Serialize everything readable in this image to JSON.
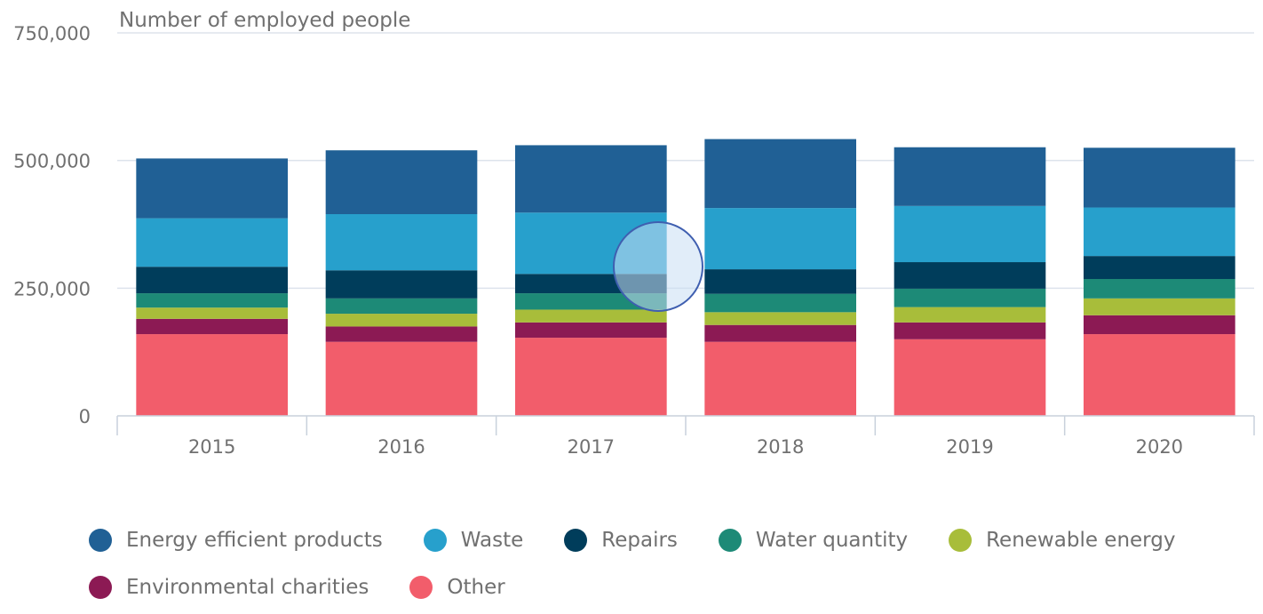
{
  "chart_data": {
    "type": "bar",
    "stacked": true,
    "title": "Number of employed people",
    "categories": [
      "2015",
      "2016",
      "2017",
      "2018",
      "2019",
      "2020"
    ],
    "ylim": [
      0,
      750000
    ],
    "yticks": [
      0,
      250000,
      500000,
      750000
    ],
    "ytick_labels": [
      "0",
      "250,000",
      "500,000",
      "750,000"
    ],
    "grid": true,
    "legend_position": "bottom",
    "series": [
      {
        "name": "Other",
        "color": "#f25d6b",
        "values": [
          160000,
          145000,
          153000,
          145000,
          150000,
          160000
        ]
      },
      {
        "name": "Environmental charities",
        "color": "#8c1a54",
        "values": [
          30000,
          30000,
          30000,
          33000,
          33000,
          37000
        ]
      },
      {
        "name": "Renewable energy",
        "color": "#a8bd3a",
        "values": [
          22000,
          25000,
          25000,
          25000,
          30000,
          33000
        ]
      },
      {
        "name": "Water quantity",
        "color": "#1d8a77",
        "values": [
          28000,
          30000,
          32000,
          36000,
          36000,
          38000
        ]
      },
      {
        "name": "Repairs",
        "color": "#003d5b",
        "values": [
          52000,
          55000,
          38000,
          48000,
          52000,
          45000
        ]
      },
      {
        "name": "Waste",
        "color": "#27a0cc",
        "values": [
          95000,
          110000,
          120000,
          120000,
          110000,
          95000
        ]
      },
      {
        "name": "Energy efficient products",
        "color": "#206095",
        "values": [
          117000,
          125000,
          132000,
          135000,
          115000,
          117000
        ]
      }
    ]
  },
  "legend": {
    "rows": [
      [
        {
          "label": "Energy efficient products",
          "color": "#206095"
        },
        {
          "label": "Waste",
          "color": "#27a0cc"
        },
        {
          "label": "Repairs",
          "color": "#003d5b"
        },
        {
          "label": "Water quantity",
          "color": "#1d8a77"
        },
        {
          "label": "Renewable energy",
          "color": "#a8bd3a"
        }
      ],
      [
        {
          "label": "Environmental charities",
          "color": "#8c1a54"
        },
        {
          "label": "Other",
          "color": "#f25d6b"
        }
      ]
    ]
  }
}
